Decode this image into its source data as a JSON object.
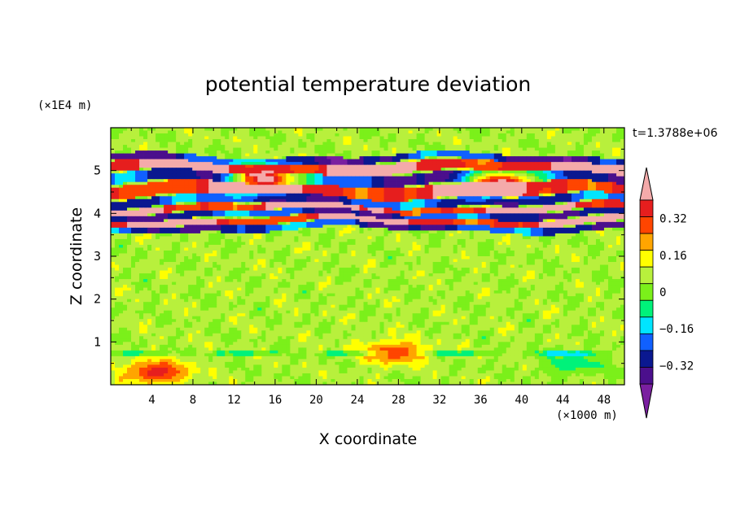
{
  "chart_data": {
    "type": "heatmap",
    "title": "potential temperature deviation",
    "xlabel": "X coordinate",
    "ylabel": "Z coordinate",
    "x_unit": "(×1000 m)",
    "y_unit": "(×1E4 m)",
    "time_label": "t=1.3788e+06",
    "xlim": [
      0,
      50
    ],
    "ylim": [
      0,
      6
    ],
    "x_ticks": [
      "4",
      "8",
      "12",
      "16",
      "20",
      "24",
      "28",
      "32",
      "36",
      "40",
      "44",
      "48"
    ],
    "x_tick_values": [
      4,
      8,
      12,
      16,
      20,
      24,
      28,
      32,
      36,
      40,
      44,
      48
    ],
    "y_ticks": [
      "1",
      "2",
      "3",
      "4",
      "5"
    ],
    "y_tick_values": [
      1,
      2,
      3,
      4,
      5
    ],
    "colorbar": {
      "levels": [
        -0.48,
        -0.4,
        -0.32,
        -0.24,
        -0.16,
        -0.08,
        0,
        0.08,
        0.16,
        0.24,
        0.32,
        0.4,
        0.48
      ],
      "labels": [
        "0.32",
        "0.16",
        "0",
        "−0.16",
        "−0.32"
      ],
      "label_values": [
        0.32,
        0.16,
        0,
        -0.16,
        -0.32
      ],
      "colors": [
        "#7a1fa0",
        "#4b0f8c",
        "#0a1890",
        "#1060ff",
        "#00e5ff",
        "#00f27a",
        "#7bf01a",
        "#b8f03c",
        "#ffff00",
        "#ffa500",
        "#ff4500",
        "#e61e1e",
        "#f4aaaa"
      ],
      "under_color": "#7a1fa0",
      "over_color": "#f4aaaa"
    },
    "field_description": {
      "background_value": 0.02,
      "bands": [
        {
          "z": [
            3.6,
            3.75
          ],
          "value": -0.4
        },
        {
          "z": [
            3.75,
            3.9
          ],
          "value": 0.45
        },
        {
          "z": [
            3.9,
            4.05
          ],
          "value": -0.4
        },
        {
          "z": [
            4.05,
            4.2
          ],
          "value": 0.45
        },
        {
          "z": [
            4.2,
            4.4
          ],
          "value": -0.4
        },
        {
          "z": [
            4.4,
            4.7
          ],
          "value": 0.45
        },
        {
          "z": [
            4.7,
            4.95
          ],
          "value": -0.4
        },
        {
          "z": [
            4.95,
            5.2
          ],
          "value": 0.45
        },
        {
          "z": [
            5.2,
            5.35
          ],
          "value": -0.42
        }
      ],
      "features": [
        {
          "x": 4.5,
          "z": 0.3,
          "value": 0.36
        },
        {
          "x": 27.5,
          "z": 0.75,
          "value": 0.3
        },
        {
          "x": 45,
          "z": 0.5,
          "value": -0.12
        },
        {
          "x": 15,
          "z": 4.8,
          "value": 0.45
        },
        {
          "x": 38,
          "z": 4.7,
          "value": 0.45
        }
      ]
    }
  }
}
